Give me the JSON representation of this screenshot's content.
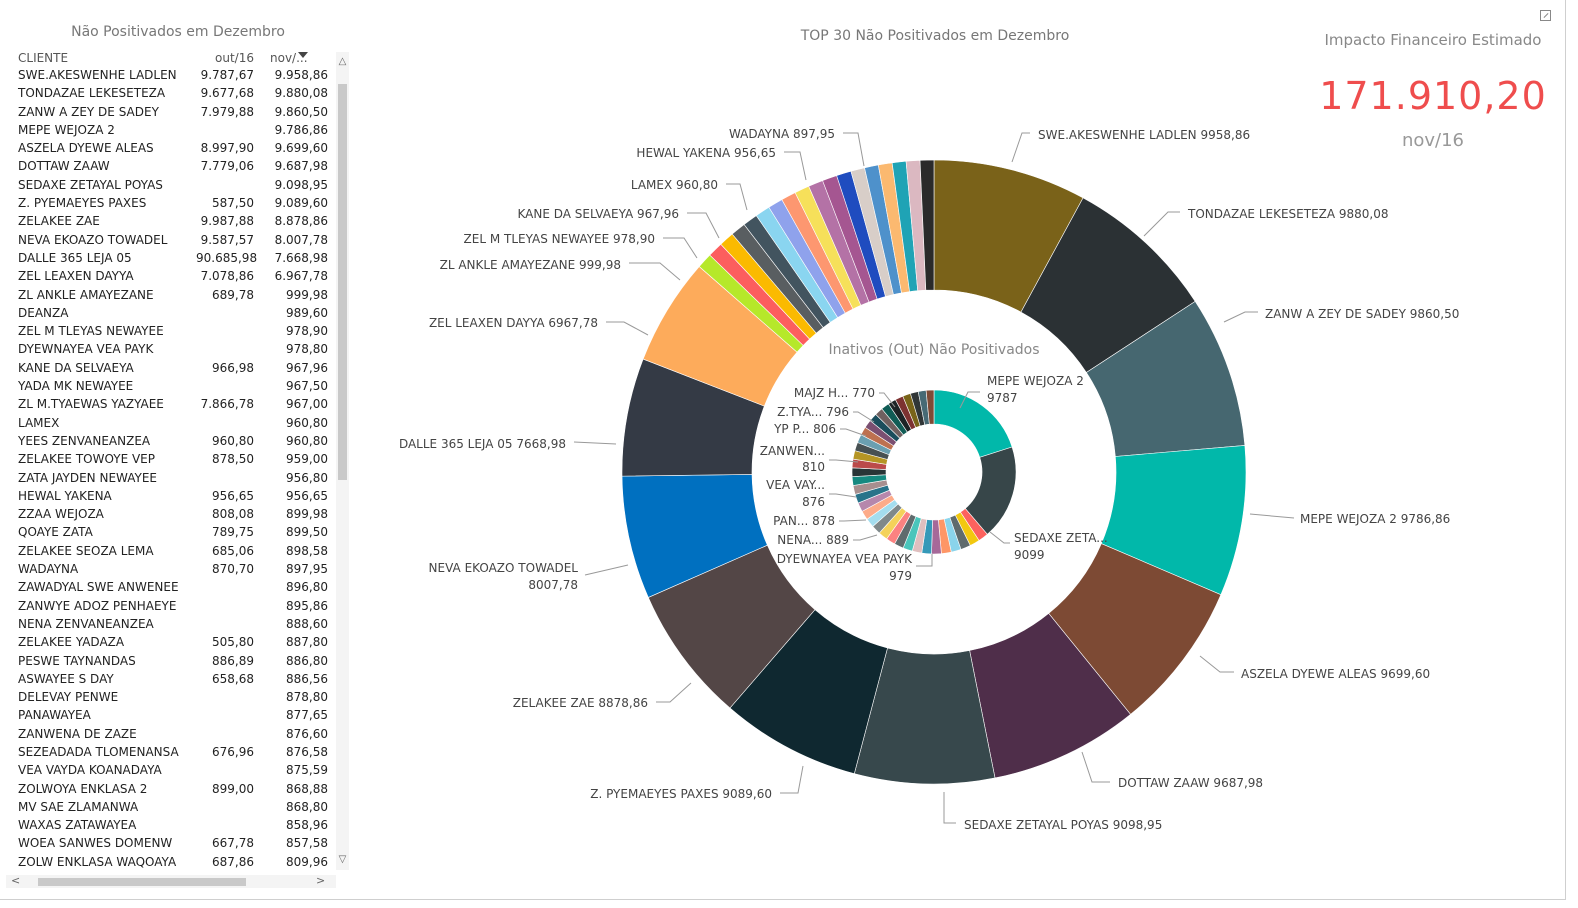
{
  "table": {
    "title": "Não Positivados em Dezembro",
    "headers": [
      "CLIENTE",
      "out/16",
      "nov/..."
    ],
    "rows": [
      [
        "SWE.AKESWENHE LADLEN",
        "9.787,67",
        "9.958,86"
      ],
      [
        "TONDAZAE LEKESETEZA",
        "9.677,68",
        "9.880,08"
      ],
      [
        "ZANW A ZEY DE SADEY",
        "7.979,88",
        "9.860,50"
      ],
      [
        "MEPE WEJOZA 2",
        "",
        "9.786,86"
      ],
      [
        "ASZELA DYEWE ALEAS",
        "8.997,90",
        "9.699,60"
      ],
      [
        "DOTTAW ZAAW",
        "7.779,06",
        "9.687,98"
      ],
      [
        "SEDAXE ZETAYAL POYAS",
        "",
        "9.098,95"
      ],
      [
        "Z. PYEMAEYES PAXES",
        "587,50",
        "9.089,60"
      ],
      [
        "ZELAKEE ZAE",
        "9.987,88",
        "8.878,86"
      ],
      [
        "NEVA EKOAZO TOWADEL",
        "9.587,57",
        "8.007,78"
      ],
      [
        "DALLE 365 LEJA 05",
        "90.685,98",
        "7.668,98"
      ],
      [
        "ZEL LEAXEN DAYYA",
        "7.078,86",
        "6.967,78"
      ],
      [
        "ZL ANKLE AMAYEZANE",
        "689,78",
        "999,98"
      ],
      [
        "DEANZA",
        "",
        "989,60"
      ],
      [
        "ZEL M TLEYAS NEWAYEE",
        "",
        "978,90"
      ],
      [
        "DYEWNAYEA VEA PAYK",
        "",
        "978,80"
      ],
      [
        "KANE DA SELVAEYA",
        "966,98",
        "967,96"
      ],
      [
        "YADA MK NEWAYEE",
        "",
        "967,50"
      ],
      [
        "ZL M.TYAEWAS YAZYAEE",
        "7.866,78",
        "967,00"
      ],
      [
        "LAMEX",
        "",
        "960,80"
      ],
      [
        "YEES ZENVANEANZEA",
        "960,80",
        "960,80"
      ],
      [
        "ZELAKEE TOWOYE VEP",
        "878,50",
        "959,00"
      ],
      [
        "ZATA JAYDEN NEWAYEE",
        "",
        "956,80"
      ],
      [
        "HEWAL YAKENA",
        "956,65",
        "956,65"
      ],
      [
        "ZZAA WEJOZA",
        "808,08",
        "899,98"
      ],
      [
        "QOAYE ZATA",
        "789,75",
        "899,50"
      ],
      [
        "ZELAKEE SEOZA LEMA",
        "685,06",
        "898,58"
      ],
      [
        "WADAYNA",
        "870,70",
        "897,95"
      ],
      [
        "ZAWADYAL SWE ANWENEE",
        "",
        "896,80"
      ],
      [
        "ZANWYE ADOZ PENHAEYE",
        "",
        "895,86"
      ],
      [
        "NENA ZENVANEANZEA",
        "",
        "888,60"
      ],
      [
        "ZELAKEE YADAZA",
        "505,80",
        "887,80"
      ],
      [
        "PESWE TAYNANDAS",
        "886,89",
        "886,80"
      ],
      [
        "ASWAYEE S DAY",
        "658,68",
        "886,56"
      ],
      [
        "DELEVAY PENWE",
        "",
        "878,80"
      ],
      [
        "PANAWAYEA",
        "",
        "877,65"
      ],
      [
        "ZANWENA DE ZAZE",
        "",
        "876,60"
      ],
      [
        "SEZEADADA TLOMENANSA",
        "676,96",
        "876,58"
      ],
      [
        "VEA VAYDA KOANADAYA",
        "",
        "875,59"
      ],
      [
        "ZOLWOYA ENKLASA 2",
        "899,00",
        "868,88"
      ],
      [
        "MV SAE ZLAMANWA",
        "",
        "868,80"
      ],
      [
        "WAXAS ZATAWAYEA",
        "",
        "858,96"
      ],
      [
        "WOEA SANWES DOMENW",
        "667,78",
        "857,58"
      ],
      [
        "ZOLW ENKLASA WAQOAYA",
        "687,86",
        "809,96"
      ]
    ]
  },
  "kpi": {
    "title": "Impacto Financeiro Estimado",
    "value": "171.910,20",
    "subtitle": "nov/16",
    "value_color": "#ef4d4d"
  },
  "chart_data": {
    "type": "pie",
    "title": "TOP 30 Não Positivados em Dezembro",
    "inner_title": "Inativos (Out) Não Positivados",
    "outer": {
      "labels": [
        "SWE.AKESWENHE LADLEN",
        "TONDAZAE LEKESETEZA",
        "ZANW A ZEY DE SADEY",
        "MEPE WEJOZA 2",
        "ASZELA DYEWE ALEAS",
        "DOTTAW ZAAW",
        "SEDAXE ZETAYAL POYAS",
        "Z. PYEMAEYES PAXES",
        "ZELAKEE ZAE",
        "NEVA EKOAZO TOWADEL",
        "DALLE 365 LEJA 05",
        "ZEL LEAXEN DAYYA",
        "ZL ANKLE AMAYEZANE",
        "DEANZA",
        "ZEL M TLEYAS NEWAYEE",
        "DYEWNAYEA VEA PAYK",
        "KANE DA SELVAEYA",
        "YADA MK NEWAYEE",
        "ZL M.TYAEWAS YAZYAEE",
        "LAMEX",
        "YEES ZENVANEANZEA",
        "ZELAKEE TOWOYE VEP",
        "ZATA JAYDEN NEWAYEE",
        "HEWAL YAKENA",
        "ZZAA WEJOZA",
        "QOAYE ZATA",
        "ZELAKEE SEOZA LEMA",
        "WADAYNA",
        "ZAWADYAL SWE ANWENEE",
        "ZANWYE ADOZ PENHAEYE"
      ],
      "values": [
        9958.86,
        9880.08,
        9860.5,
        9786.86,
        9699.6,
        9687.98,
        9098.95,
        9089.6,
        8878.86,
        8007.78,
        7668.98,
        6967.78,
        999.98,
        989.6,
        978.9,
        978.8,
        967.96,
        967.5,
        967.0,
        960.8,
        960.8,
        959.0,
        956.8,
        956.65,
        899.98,
        899.5,
        898.58,
        897.95,
        896.8,
        895.86
      ],
      "colors": [
        "#7a6219",
        "#2b3134",
        "#466770",
        "#01b8aa",
        "#7d4a34",
        "#4f2e4a",
        "#37484c",
        "#0f2830",
        "#534646",
        "#0070c0",
        "#343a45",
        "#fdab5b",
        "#b6e82a",
        "#fc5e5e",
        "#fbba00",
        "#595e61",
        "#42545f",
        "#8ad5f0",
        "#8fa2ec",
        "#fd9770",
        "#f6e05a",
        "#b472a6",
        "#a55691",
        "#1f4cbf",
        "#d8cec8",
        "#4e91cb",
        "#fbb970",
        "#1fa3b5",
        "#dbb8c1",
        "#2a2a2a"
      ],
      "callouts": [
        {
          "i": 0,
          "text": "SWE.AKESWENHE LADLEN 9958,86"
        },
        {
          "i": 1,
          "text": "TONDAZAE LEKESETEZA 9880,08"
        },
        {
          "i": 2,
          "text": "ZANW A ZEY DE SADEY 9860,50"
        },
        {
          "i": 3,
          "text": "MEPE WEJOZA 2 9786,86"
        },
        {
          "i": 4,
          "text": "ASZELA DYEWE ALEAS 9699,60"
        },
        {
          "i": 5,
          "text": "DOTTAW ZAAW 9687,98"
        },
        {
          "i": 6,
          "text": "SEDAXE ZETAYAL POYAS 9098,95"
        },
        {
          "i": 7,
          "text": "Z. PYEMAEYES PAXES 9089,60"
        },
        {
          "i": 8,
          "text": "ZELAKEE ZAE 8878,86"
        },
        {
          "i": 9,
          "text": "NEVA EKOAZO TOWADEL",
          "text2": "8007,78"
        },
        {
          "i": 10,
          "text": "DALLE 365 LEJA 05 7668,98"
        },
        {
          "i": 11,
          "text": "ZEL LEAXEN DAYYA 6967,78"
        },
        {
          "i": 12,
          "text": "ZL ANKLE AMAYEZANE 999,98"
        },
        {
          "i": 14,
          "text": "ZEL M TLEYAS NEWAYEE 978,90"
        },
        {
          "i": 16,
          "text": "KANE DA SELVAEYA 967,96"
        },
        {
          "i": 19,
          "text": "LAMEX 960,80"
        },
        {
          "i": 23,
          "text": "HEWAL YAKENA 956,65"
        },
        {
          "i": 27,
          "text": "WADAYNA 897,95"
        }
      ]
    },
    "inner": {
      "values": [
        9787,
        9099,
        979,
        960,
        955,
        950,
        945,
        940,
        930,
        920,
        910,
        900,
        889,
        885,
        880,
        878,
        876,
        870,
        865,
        860,
        850,
        840,
        830,
        820,
        810,
        806,
        800,
        796,
        790,
        785,
        780,
        775,
        770,
        765,
        760,
        755,
        750
      ],
      "colors": [
        "#01b8aa",
        "#374649",
        "#fd625e",
        "#f2c80f",
        "#5f6b6d",
        "#8ad4eb",
        "#fe9666",
        "#a66999",
        "#3599b8",
        "#dfbfbf",
        "#4ac5bb",
        "#5f6b6d",
        "#fb8281",
        "#f4d25a",
        "#7f898a",
        "#a4ddee",
        "#fdab89",
        "#b687ac",
        "#28738a",
        "#a78f8f",
        "#168980",
        "#293537",
        "#bb4a4a",
        "#b59525",
        "#475052",
        "#6a9fb0",
        "#bd7150",
        "#7b4f71",
        "#1b4d5c",
        "#706060",
        "#0f5c55",
        "#1c2325",
        "#7d3231",
        "#796419",
        "#303637",
        "#476a75",
        "#7e4b36"
      ],
      "callouts": [
        {
          "text": "MEPE WEJOZA 2",
          "text2": "9787"
        },
        {
          "text": "SEDAXE ZETA...",
          "text2": "9099"
        },
        {
          "text": "DYEWNAYEA VEA PAYK",
          "text2": "979"
        },
        {
          "text": "NENA... 889"
        },
        {
          "text": "PAN... 878"
        },
        {
          "text": "VEA VAY...",
          "text2": "876"
        },
        {
          "text": "ZANWEN...",
          "text2": "810"
        },
        {
          "text": "YP P... 806"
        },
        {
          "text": "Z.TYA... 796"
        },
        {
          "text": "MAJZ H... 770"
        }
      ]
    }
  }
}
